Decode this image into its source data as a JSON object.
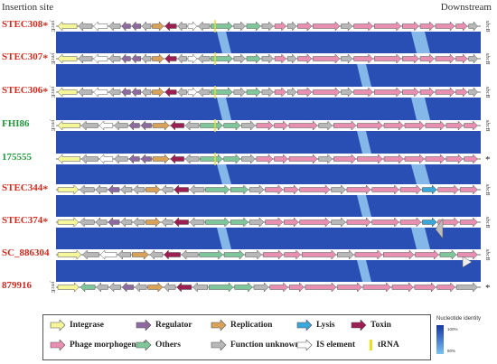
{
  "header": {
    "left": "Insertion site",
    "right": "Downstream"
  },
  "tracks": [
    {
      "label": "STEC308",
      "star": "*",
      "color": "#d42a1e",
      "left_gene": "yecE",
      "right_gene": "sbcB",
      "pattern": "A",
      "end_star": false,
      "tail": 0
    },
    {
      "label": "STEC307",
      "star": "*",
      "color": "#d42a1e",
      "left_gene": "yecE",
      "right_gene": "sbcB",
      "pattern": "A",
      "end_star": false,
      "tail": 0
    },
    {
      "label": "STEC306",
      "star": "*",
      "color": "#d42a1e",
      "left_gene": "yecE",
      "right_gene": "sbcB",
      "pattern": "A",
      "end_star": false,
      "tail": 0
    },
    {
      "label": "FHI86",
      "star": "",
      "color": "#1f9a3c",
      "left_gene": "yecE",
      "right_gene": "sbcB",
      "pattern": "B",
      "end_star": false,
      "tail": 0
    },
    {
      "label": "175555",
      "star": "",
      "color": "#1f9a3c",
      "left_gene": "",
      "right_gene": "",
      "pattern": "B",
      "end_star": true,
      "tail": 0
    },
    {
      "label": "STEC344",
      "star": "*",
      "color": "#d42a1e",
      "left_gene": "",
      "right_gene": "sbcB",
      "pattern": "C",
      "end_star": false,
      "tail": 0
    },
    {
      "label": "STEC374",
      "star": "*",
      "color": "#d42a1e",
      "left_gene": "",
      "right_gene": "sbcB",
      "pattern": "C",
      "end_star": false,
      "tail": 1
    },
    {
      "label": "SC_886304",
      "star": "",
      "color": "#d42a1e",
      "left_gene": "",
      "right_gene": "sbcB",
      "pattern": "D",
      "end_star": false,
      "tail": 2
    },
    {
      "label": "879916",
      "star": "",
      "color": "#d42a1e",
      "left_gene": "yecE",
      "right_gene": "",
      "pattern": "E",
      "end_star": true,
      "tail": 0
    }
  ],
  "legend": [
    {
      "label": "Integrase",
      "color": "#f5f59a"
    },
    {
      "label": "Regulator",
      "color": "#8e6b9e"
    },
    {
      "label": "Replication",
      "color": "#d9a25a"
    },
    {
      "label": "Lysis",
      "color": "#3aa7d8"
    },
    {
      "label": "Toxin",
      "color": "#9b1f52"
    },
    {
      "label": "Phage morphogenesis",
      "color": "#e88fb2"
    },
    {
      "label": "Others",
      "color": "#7fc79a"
    },
    {
      "label": "Function unknown",
      "color": "#b8b8b8"
    },
    {
      "label": "IS element",
      "color": "#ffffff"
    },
    {
      "label": "tRNA",
      "color": "#e8e020"
    }
  ],
  "identity": {
    "title": "Nucleotide identity",
    "high": "100%",
    "low": "80%"
  },
  "colors": {
    "band": "#1e45b0",
    "band_light": "#8fc4ee",
    "outline": "#555555"
  }
}
